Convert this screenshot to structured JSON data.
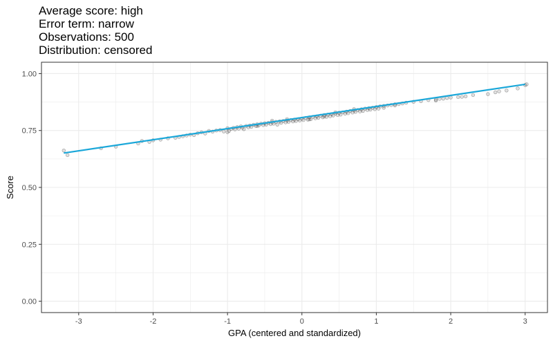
{
  "chart_data": {
    "type": "scatter",
    "title_lines": [
      "Average score: high",
      "Error term: narrow",
      "Observations: 500",
      "Distribution: censored"
    ],
    "xlabel": "GPA (centered and standardized)",
    "ylabel": "Score",
    "xlim": [
      -3.5,
      3.3
    ],
    "ylim": [
      -0.05,
      1.05
    ],
    "x_ticks": [
      -3,
      -2,
      -1,
      0,
      1,
      2,
      3
    ],
    "x_tick_labels": [
      "-3",
      "-2",
      "-1",
      "0",
      "1",
      "2",
      "3"
    ],
    "y_ticks": [
      0.0,
      0.25,
      0.5,
      0.75,
      1.0
    ],
    "y_tick_labels": [
      "0.00",
      "0.25",
      "0.50",
      "0.75",
      "1.00"
    ],
    "grid": true,
    "observations": 500,
    "trend_line": {
      "x": [
        -3.2,
        3.0
      ],
      "y": [
        0.651,
        0.953
      ]
    },
    "colors": {
      "points": "#000000",
      "trend": "#1aa7d9",
      "grid": "#ebebeb",
      "panel_border": "#333333"
    },
    "points": [
      [
        -3.2,
        0.662
      ],
      [
        -3.15,
        0.642
      ],
      [
        -2.7,
        0.672
      ],
      [
        -2.5,
        0.679
      ],
      [
        -2.2,
        0.693
      ],
      [
        -2.15,
        0.704
      ],
      [
        -2.05,
        0.7
      ],
      [
        -2.0,
        0.707
      ],
      [
        -1.9,
        0.71
      ],
      [
        -1.8,
        0.716
      ],
      [
        -1.7,
        0.718
      ],
      [
        -1.6,
        0.725
      ],
      [
        -1.55,
        0.728
      ],
      [
        -1.5,
        0.732
      ],
      [
        -1.45,
        0.73
      ],
      [
        -1.4,
        0.738
      ],
      [
        -1.35,
        0.742
      ],
      [
        -1.3,
        0.737
      ],
      [
        -1.25,
        0.748
      ],
      [
        -1.2,
        0.745
      ],
      [
        -1.15,
        0.75
      ],
      [
        -1.1,
        0.752
      ],
      [
        -1.05,
        0.746
      ],
      [
        -1.0,
        0.76
      ],
      [
        -0.98,
        0.748
      ],
      [
        -0.95,
        0.757
      ],
      [
        -0.92,
        0.762
      ],
      [
        -0.9,
        0.755
      ],
      [
        -0.87,
        0.765
      ],
      [
        -0.85,
        0.758
      ],
      [
        -0.82,
        0.768
      ],
      [
        -0.8,
        0.762
      ],
      [
        -0.78,
        0.756
      ],
      [
        -0.75,
        0.77
      ],
      [
        -0.72,
        0.764
      ],
      [
        -0.7,
        0.772
      ],
      [
        -0.68,
        0.766
      ],
      [
        -0.65,
        0.775
      ],
      [
        -0.62,
        0.77
      ],
      [
        -0.6,
        0.778
      ],
      [
        -0.58,
        0.772
      ],
      [
        -0.55,
        0.78
      ],
      [
        -0.52,
        0.774
      ],
      [
        -0.5,
        0.782
      ],
      [
        -0.48,
        0.776
      ],
      [
        -0.45,
        0.784
      ],
      [
        -0.42,
        0.778
      ],
      [
        -0.4,
        0.786
      ],
      [
        -0.38,
        0.78
      ],
      [
        -0.35,
        0.788
      ],
      [
        -0.33,
        0.776
      ],
      [
        -0.3,
        0.79
      ],
      [
        -0.28,
        0.784
      ],
      [
        -0.25,
        0.792
      ],
      [
        -0.22,
        0.786
      ],
      [
        -0.2,
        0.794
      ],
      [
        -0.18,
        0.788
      ],
      [
        -0.15,
        0.796
      ],
      [
        -0.12,
        0.79
      ],
      [
        -0.1,
        0.798
      ],
      [
        -0.08,
        0.792
      ],
      [
        -0.05,
        0.8
      ],
      [
        -0.03,
        0.794
      ],
      [
        0.0,
        0.802
      ],
      [
        0.02,
        0.796
      ],
      [
        0.05,
        0.805
      ],
      [
        0.08,
        0.798
      ],
      [
        0.1,
        0.808
      ],
      [
        0.12,
        0.8
      ],
      [
        0.15,
        0.81
      ],
      [
        0.18,
        0.804
      ],
      [
        0.2,
        0.812
      ],
      [
        0.22,
        0.806
      ],
      [
        0.25,
        0.815
      ],
      [
        0.28,
        0.808
      ],
      [
        0.3,
        0.818
      ],
      [
        0.33,
        0.81
      ],
      [
        0.35,
        0.82
      ],
      [
        0.38,
        0.813
      ],
      [
        0.4,
        0.822
      ],
      [
        0.42,
        0.816
      ],
      [
        0.45,
        0.825
      ],
      [
        0.48,
        0.818
      ],
      [
        0.5,
        0.828
      ],
      [
        0.52,
        0.82
      ],
      [
        0.55,
        0.83
      ],
      [
        0.58,
        0.824
      ],
      [
        0.6,
        0.833
      ],
      [
        0.62,
        0.826
      ],
      [
        0.65,
        0.836
      ],
      [
        0.68,
        0.829
      ],
      [
        0.7,
        0.838
      ],
      [
        0.72,
        0.832
      ],
      [
        0.75,
        0.84
      ],
      [
        0.78,
        0.834
      ],
      [
        0.8,
        0.843
      ],
      [
        0.82,
        0.836
      ],
      [
        0.85,
        0.846
      ],
      [
        0.88,
        0.84
      ],
      [
        0.9,
        0.848
      ],
      [
        0.92,
        0.842
      ],
      [
        0.95,
        0.85
      ],
      [
        0.98,
        0.844
      ],
      [
        1.0,
        0.853
      ],
      [
        1.03,
        0.846
      ],
      [
        1.05,
        0.856
      ],
      [
        1.1,
        0.858
      ],
      [
        1.15,
        0.86
      ],
      [
        1.2,
        0.862
      ],
      [
        1.25,
        0.865
      ],
      [
        1.3,
        0.866
      ],
      [
        1.35,
        0.869
      ],
      [
        1.4,
        0.872
      ],
      [
        1.5,
        0.876
      ],
      [
        1.6,
        0.879
      ],
      [
        1.7,
        0.884
      ],
      [
        1.8,
        0.886
      ],
      [
        1.9,
        0.89
      ],
      [
        2.0,
        0.895
      ],
      [
        2.1,
        0.897
      ],
      [
        2.2,
        0.9
      ],
      [
        2.3,
        0.906
      ],
      [
        2.5,
        0.91
      ],
      [
        2.6,
        0.918
      ],
      [
        2.65,
        0.922
      ],
      [
        2.75,
        0.926
      ],
      [
        2.9,
        0.935
      ],
      [
        3.0,
        0.95
      ],
      [
        3.02,
        0.953
      ],
      [
        1.8,
        0.882
      ],
      [
        1.85,
        0.889
      ],
      [
        1.95,
        0.893
      ],
      [
        2.15,
        0.898
      ],
      [
        -1.65,
        0.722
      ],
      [
        -1.0,
        0.743
      ],
      [
        -0.6,
        0.77
      ],
      [
        0.3,
        0.812
      ],
      [
        0.7,
        0.844
      ],
      [
        1.1,
        0.85
      ],
      [
        -0.4,
        0.793
      ],
      [
        -0.2,
        0.8
      ],
      [
        0.1,
        0.799
      ],
      [
        0.45,
        0.83
      ],
      [
        1.25,
        0.86
      ]
    ]
  }
}
